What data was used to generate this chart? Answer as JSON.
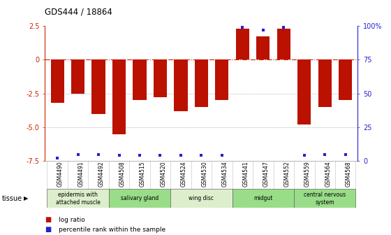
{
  "title": "GDS444 / 18864",
  "samples": [
    "GSM4490",
    "GSM4491",
    "GSM4492",
    "GSM4508",
    "GSM4515",
    "GSM4520",
    "GSM4524",
    "GSM4530",
    "GSM4534",
    "GSM4541",
    "GSM4547",
    "GSM4552",
    "GSM4559",
    "GSM4564",
    "GSM4568"
  ],
  "log_ratio": [
    -3.2,
    -2.5,
    -4.0,
    -5.5,
    -3.0,
    -2.8,
    -3.8,
    -3.5,
    -3.0,
    2.3,
    1.7,
    2.3,
    -4.8,
    -3.5,
    -3.0
  ],
  "percentile": [
    2,
    5,
    5,
    4,
    4,
    4,
    4,
    4,
    4,
    99,
    97,
    99,
    4,
    5,
    5
  ],
  "ylim_left": [
    -7.5,
    2.5
  ],
  "ylim_right": [
    0,
    100
  ],
  "yticks_left": [
    2.5,
    0.0,
    -2.5,
    -5.0,
    -7.5
  ],
  "yticks_right": [
    100,
    75,
    50,
    25,
    0
  ],
  "bar_color": "#bb1100",
  "dot_color": "#2222cc",
  "tissue_groups": [
    {
      "label": "epidermis with\nattached muscle",
      "start": 0,
      "end": 3,
      "color": "#ddeecc"
    },
    {
      "label": "salivary gland",
      "start": 3,
      "end": 6,
      "color": "#99dd88"
    },
    {
      "label": "wing disc",
      "start": 6,
      "end": 9,
      "color": "#ddeecc"
    },
    {
      "label": "midgut",
      "start": 9,
      "end": 12,
      "color": "#99dd88"
    },
    {
      "label": "central nervous\nsystem",
      "start": 12,
      "end": 15,
      "color": "#99dd88"
    }
  ],
  "bg_color": "#ffffff",
  "grid_color": "#888888",
  "zero_line_color": "#cc2200",
  "hline_color": "#999999"
}
